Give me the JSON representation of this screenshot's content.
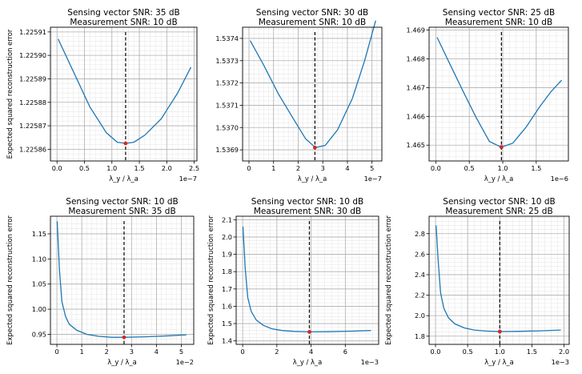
{
  "chart_data": [
    {
      "type": "line",
      "title": "Sensing vector SNR: 35 dB",
      "subtitle": "Measurement SNR: 10 dB",
      "xlabel": "λ_y / λ_a",
      "ylabel": "Expected squared reconstruction error",
      "x_multiplier": "1e−7",
      "xlim": [
        -0.12,
        2.55
      ],
      "ylim": [
        1.225855,
        1.225912
      ],
      "xticks": [
        0,
        0.5,
        1.0,
        1.5,
        2.0,
        2.5
      ],
      "xtick_labels": [
        "0.0",
        "0.5",
        "1.0",
        "1.5",
        "2.0",
        "2.5"
      ],
      "yticks": [
        1.22586,
        1.22587,
        1.22588,
        1.22589,
        1.2259,
        1.22591
      ],
      "ytick_labels": [
        "1.22586",
        "1.22587",
        "1.22588",
        "1.22589",
        "1.22590",
        "1.22591"
      ],
      "series": [
        {
          "name": "error",
          "color": "#1f77b4",
          "x": [
            0.02,
            0.3,
            0.6,
            0.9,
            1.1,
            1.25,
            1.4,
            1.6,
            1.9,
            2.2,
            2.44
          ],
          "y": [
            1.225907,
            1.225893,
            1.225878,
            1.225867,
            1.225863,
            1.2258625,
            1.225863,
            1.225866,
            1.225873,
            1.225884,
            1.225895
          ]
        }
      ],
      "optimum": {
        "x": 1.25,
        "y": 1.2258625,
        "color": "#d62728"
      },
      "vline": {
        "x": 1.25,
        "color": "#000000"
      }
    },
    {
      "type": "line",
      "title": "Sensing vector SNR: 30 dB",
      "subtitle": "Measurement SNR: 10 dB",
      "xlabel": "λ_y / λ_a",
      "ylabel": "",
      "x_multiplier": "1e−7",
      "xlim": [
        -0.26,
        5.4
      ],
      "ylim": [
        1.53685,
        1.53745
      ],
      "xticks": [
        0,
        1,
        2,
        3,
        4,
        5
      ],
      "xtick_labels": [
        "0",
        "1",
        "2",
        "3",
        "4",
        "5"
      ],
      "yticks": [
        1.5369,
        1.537,
        1.5371,
        1.5372,
        1.5373,
        1.5374
      ],
      "ytick_labels": [
        "1.5369",
        "1.5370",
        "1.5371",
        "1.5372",
        "1.5373",
        "1.5374"
      ],
      "series": [
        {
          "name": "error",
          "color": "#1f77b4",
          "x": [
            0.05,
            0.6,
            1.2,
            1.8,
            2.3,
            2.7,
            3.1,
            3.6,
            4.2,
            4.7,
            5.15
          ],
          "y": [
            1.53739,
            1.53728,
            1.53715,
            1.53704,
            1.53695,
            1.53691,
            1.53692,
            1.53699,
            1.53713,
            1.5373,
            1.53748
          ]
        }
      ],
      "optimum": {
        "x": 2.68,
        "y": 1.53691,
        "color": "#d62728"
      },
      "vline": {
        "x": 2.68,
        "color": "#000000"
      }
    },
    {
      "type": "line",
      "title": "Sensing vector SNR: 25 dB",
      "subtitle": "Measurement SNR: 10 dB",
      "xlabel": "λ_y / λ_a",
      "ylabel": "",
      "x_multiplier": "1e−6",
      "xlim": [
        -0.1,
        1.98
      ],
      "ylim": [
        1.46445,
        1.4691
      ],
      "xticks": [
        0,
        0.5,
        1.0,
        1.5
      ],
      "xtick_labels": [
        "0.0",
        "0.5",
        "1.0",
        "1.5"
      ],
      "yticks": [
        1.465,
        1.466,
        1.467,
        1.468,
        1.469
      ],
      "ytick_labels": [
        "1.465",
        "1.466",
        "1.467",
        "1.468",
        "1.469"
      ],
      "series": [
        {
          "name": "error",
          "color": "#1f77b4",
          "x": [
            0.02,
            0.2,
            0.4,
            0.6,
            0.8,
            0.98,
            1.15,
            1.35,
            1.55,
            1.72,
            1.88
          ],
          "y": [
            1.46875,
            1.46787,
            1.46691,
            1.46597,
            1.46513,
            1.46493,
            1.46507,
            1.46563,
            1.46633,
            1.46686,
            1.46726
          ]
        }
      ],
      "optimum": {
        "x": 0.98,
        "y": 1.46493,
        "color": "#d62728"
      },
      "vline": {
        "x": 0.98,
        "color": "#000000"
      }
    },
    {
      "type": "line",
      "title": "Sensing vector SNR: 10 dB",
      "subtitle": "Measurement SNR: 35 dB",
      "xlabel": "λ_y / λ_a",
      "ylabel": "Expected squared reconstruction error",
      "x_multiplier": "1e−2",
      "xlim": [
        -0.26,
        5.5
      ],
      "ylim": [
        0.93,
        1.185
      ],
      "xticks": [
        0,
        1,
        2,
        3,
        4,
        5
      ],
      "xtick_labels": [
        "0",
        "1",
        "2",
        "3",
        "4",
        "5"
      ],
      "yticks": [
        0.95,
        1.0,
        1.05,
        1.1,
        1.15
      ],
      "ytick_labels": [
        "0.95",
        "1.00",
        "1.05",
        "1.10",
        "1.15"
      ],
      "series": [
        {
          "name": "error",
          "color": "#1f77b4",
          "x": [
            0.01,
            0.1,
            0.2,
            0.35,
            0.5,
            0.8,
            1.2,
            1.7,
            2.2,
            2.7,
            3.5,
            4.5,
            5.2
          ],
          "y": [
            1.175,
            1.08,
            1.015,
            0.985,
            0.97,
            0.958,
            0.95,
            0.946,
            0.944,
            0.944,
            0.945,
            0.947,
            0.949
          ]
        }
      ],
      "optimum": {
        "x": 2.7,
        "y": 0.944,
        "color": "#d62728"
      },
      "vline": {
        "x": 2.7,
        "color": "#000000"
      }
    },
    {
      "type": "line",
      "title": "Sensing vector SNR: 10 dB",
      "subtitle": "Measurement SNR: 30 dB",
      "xlabel": "λ_y / λ_a",
      "ylabel": "Expected squared reconstruction error",
      "x_multiplier": "1e−3",
      "xlim": [
        -0.38,
        7.95
      ],
      "ylim": [
        1.38,
        2.12
      ],
      "xticks": [
        0,
        2,
        4,
        6
      ],
      "xtick_labels": [
        "0",
        "2",
        "4",
        "6"
      ],
      "yticks": [
        1.4,
        1.5,
        1.6,
        1.7,
        1.8,
        1.9,
        2.0,
        2.1
      ],
      "ytick_labels": [
        "1.4",
        "1.5",
        "1.6",
        "1.7",
        "1.8",
        "1.9",
        "2.0",
        "2.1"
      ],
      "series": [
        {
          "name": "error",
          "color": "#1f77b4",
          "x": [
            0.02,
            0.15,
            0.3,
            0.5,
            0.8,
            1.2,
            1.7,
            2.3,
            3.0,
            3.9,
            5.0,
            6.2,
            7.5
          ],
          "y": [
            2.06,
            1.82,
            1.65,
            1.57,
            1.52,
            1.49,
            1.47,
            1.46,
            1.455,
            1.452,
            1.453,
            1.456,
            1.46
          ]
        }
      ],
      "optimum": {
        "x": 3.9,
        "y": 1.452,
        "color": "#d62728"
      },
      "vline": {
        "x": 3.9,
        "color": "#000000"
      }
    },
    {
      "type": "line",
      "title": "Sensing vector SNR: 10 dB",
      "subtitle": "Measurement SNR: 25 dB",
      "xlabel": "λ_y / λ_a",
      "ylabel": "Expected squared reconstruction error",
      "x_multiplier": "1e−3",
      "xlim": [
        -0.1,
        2.08
      ],
      "ylim": [
        1.72,
        2.97
      ],
      "xticks": [
        0,
        0.5,
        1.0,
        1.5,
        2.0
      ],
      "xtick_labels": [
        "0.0",
        "0.5",
        "1.0",
        "1.5",
        "2.0"
      ],
      "yticks": [
        1.8,
        2.0,
        2.2,
        2.4,
        2.6,
        2.8
      ],
      "ytick_labels": [
        "1.8",
        "2.0",
        "2.2",
        "2.4",
        "2.6",
        "2.8"
      ],
      "series": [
        {
          "name": "error",
          "color": "#1f77b4",
          "x": [
            0.01,
            0.04,
            0.08,
            0.13,
            0.2,
            0.3,
            0.45,
            0.6,
            0.8,
            1.0,
            1.3,
            1.6,
            1.95
          ],
          "y": [
            2.88,
            2.55,
            2.22,
            2.07,
            1.98,
            1.92,
            1.88,
            1.86,
            1.85,
            1.845,
            1.847,
            1.852,
            1.86
          ]
        }
      ],
      "optimum": {
        "x": 1.0,
        "y": 1.845,
        "color": "#d62728"
      },
      "vline": {
        "x": 1.0,
        "color": "#000000"
      }
    }
  ]
}
